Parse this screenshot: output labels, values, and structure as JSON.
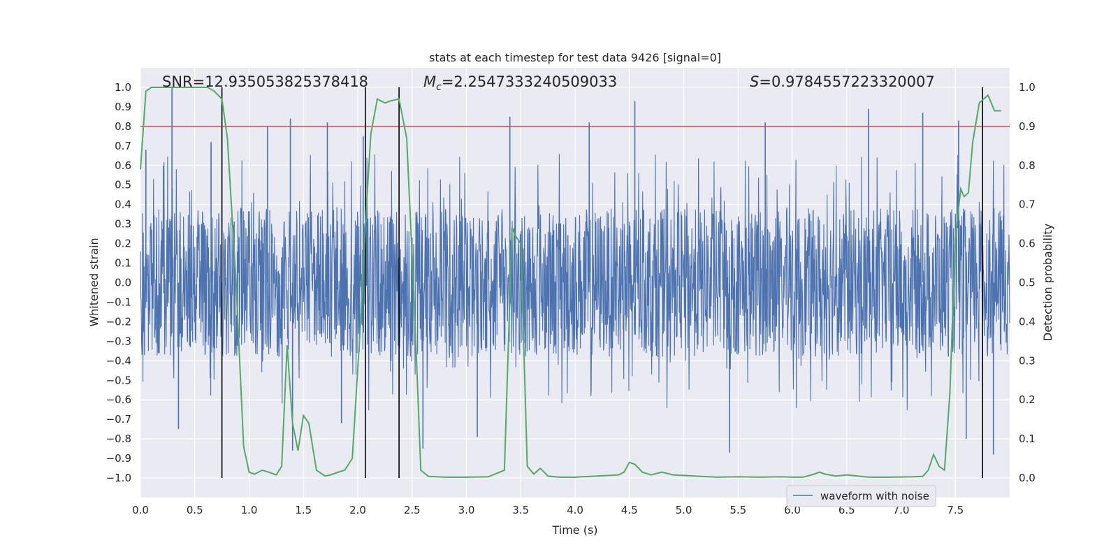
{
  "chart_data": {
    "type": "line",
    "title": "stats at each timestep for test data 9426 [signal=0]",
    "xlabel": "Time (s)",
    "ylabel": "Whitened strain",
    "y2label": "Detection probability",
    "xlim": [
      0.0,
      8.0
    ],
    "ylim": [
      -1.1,
      1.1
    ],
    "y2lim": [
      -0.05,
      1.05
    ],
    "x_ticks": [
      0.0,
      0.5,
      1.0,
      1.5,
      2.0,
      2.5,
      3.0,
      3.5,
      4.0,
      4.5,
      5.0,
      5.5,
      6.0,
      6.5,
      7.0,
      7.5
    ],
    "y_ticks": [
      -1.0,
      -0.9,
      -0.8,
      -0.7,
      -0.6,
      -0.5,
      -0.4,
      -0.3,
      -0.2,
      -0.1,
      0.0,
      0.1,
      0.2,
      0.3,
      0.4,
      0.5,
      0.6,
      0.7,
      0.8,
      0.9,
      1.0
    ],
    "y2_ticks": [
      0.0,
      0.1,
      0.2,
      0.3,
      0.4,
      0.5,
      0.6,
      0.7,
      0.8,
      0.9,
      1.0
    ],
    "annotations": {
      "snr": "SNR=12.935053825378418",
      "mc_symbol": "M",
      "mc_sub": "c",
      "mc_value": "=2.2547333240509033",
      "s_symbol": "S",
      "s_value": "=0.9784557223320007"
    },
    "legend": {
      "label": "waveform with noise",
      "placement": "lower-right"
    },
    "threshold": {
      "value": 0.9,
      "axis": "y2"
    },
    "vertical_lines": [
      0.75,
      2.07,
      2.38,
      7.75
    ],
    "waveform": {
      "name": "waveform with noise",
      "typical_amplitude": 0.38,
      "x_start": 0.0,
      "x_end": 8.0,
      "peaks": [
        {
          "x": 0.29,
          "y": 1.0
        },
        {
          "x": 0.05,
          "y": 0.68
        },
        {
          "x": 0.65,
          "y": 0.72
        },
        {
          "x": 1.17,
          "y": 0.8
        },
        {
          "x": 1.38,
          "y": 0.84
        },
        {
          "x": 1.72,
          "y": 0.82
        },
        {
          "x": 2.05,
          "y": 0.75
        },
        {
          "x": 3.4,
          "y": 0.85
        },
        {
          "x": 4.13,
          "y": 0.82
        },
        {
          "x": 4.55,
          "y": 0.93
        },
        {
          "x": 5.75,
          "y": 0.82
        },
        {
          "x": 6.7,
          "y": 0.89
        },
        {
          "x": 7.2,
          "y": 0.87
        },
        {
          "x": 7.53,
          "y": 0.83
        },
        {
          "x": 0.35,
          "y": -0.75
        },
        {
          "x": 1.4,
          "y": -0.86
        },
        {
          "x": 1.85,
          "y": -0.72
        },
        {
          "x": 2.6,
          "y": -0.85
        },
        {
          "x": 3.1,
          "y": -0.79
        },
        {
          "x": 5.42,
          "y": -0.87
        },
        {
          "x": 7.85,
          "y": -0.88
        },
        {
          "x": 7.6,
          "y": -0.8
        }
      ]
    },
    "detection_probability": {
      "name": "Detection probability",
      "x": [
        0.0,
        0.05,
        0.1,
        0.15,
        0.25,
        0.35,
        0.45,
        0.55,
        0.62,
        0.68,
        0.75,
        0.8,
        0.88,
        0.95,
        1.0,
        1.05,
        1.12,
        1.18,
        1.25,
        1.3,
        1.35,
        1.4,
        1.45,
        1.5,
        1.55,
        1.62,
        1.7,
        1.75,
        1.82,
        1.88,
        1.95,
        2.0,
        2.03,
        2.07,
        2.12,
        2.18,
        2.25,
        2.3,
        2.38,
        2.45,
        2.52,
        2.58,
        2.65,
        2.8,
        3.0,
        3.2,
        3.35,
        3.42,
        3.45,
        3.5,
        3.56,
        3.62,
        3.68,
        3.75,
        3.85,
        4.0,
        4.2,
        4.4,
        4.45,
        4.5,
        4.55,
        4.62,
        4.7,
        4.8,
        4.9,
        5.1,
        5.3,
        5.5,
        5.7,
        5.9,
        6.0,
        6.1,
        6.2,
        6.25,
        6.3,
        6.4,
        6.5,
        6.6,
        6.7,
        6.9,
        7.1,
        7.2,
        7.25,
        7.3,
        7.35,
        7.4,
        7.45,
        7.5,
        7.55,
        7.58,
        7.62,
        7.66,
        7.72,
        7.8,
        7.86,
        7.92
      ],
      "values": [
        0.79,
        0.99,
        1.0,
        1.0,
        1.0,
        1.0,
        1.0,
        1.0,
        1.0,
        0.99,
        0.97,
        0.87,
        0.5,
        0.08,
        0.015,
        0.01,
        0.02,
        0.015,
        0.008,
        0.03,
        0.34,
        0.14,
        0.07,
        0.16,
        0.14,
        0.02,
        0.005,
        0.008,
        0.015,
        0.02,
        0.05,
        0.28,
        0.42,
        0.65,
        0.88,
        0.97,
        0.96,
        0.965,
        0.97,
        0.87,
        0.45,
        0.02,
        0.004,
        0.002,
        0.002,
        0.003,
        0.02,
        0.64,
        0.62,
        0.6,
        0.03,
        0.01,
        0.025,
        0.005,
        0.002,
        0.002,
        0.005,
        0.008,
        0.015,
        0.04,
        0.035,
        0.015,
        0.008,
        0.015,
        0.008,
        0.005,
        0.002,
        0.003,
        0.002,
        0.003,
        0.002,
        0.002,
        0.01,
        0.015,
        0.01,
        0.005,
        0.008,
        0.005,
        0.002,
        0.002,
        0.003,
        0.004,
        0.02,
        0.06,
        0.03,
        0.02,
        0.22,
        0.62,
        0.74,
        0.72,
        0.73,
        0.86,
        0.96,
        0.98,
        0.94,
        0.94
      ]
    },
    "colors": {
      "waveform": "#4C72B0",
      "probability": "#55A868",
      "threshold": "#C44E52",
      "vlines": "#000000",
      "plot_bg": "#EAEAF2",
      "grid": "#FFFFFF"
    }
  }
}
